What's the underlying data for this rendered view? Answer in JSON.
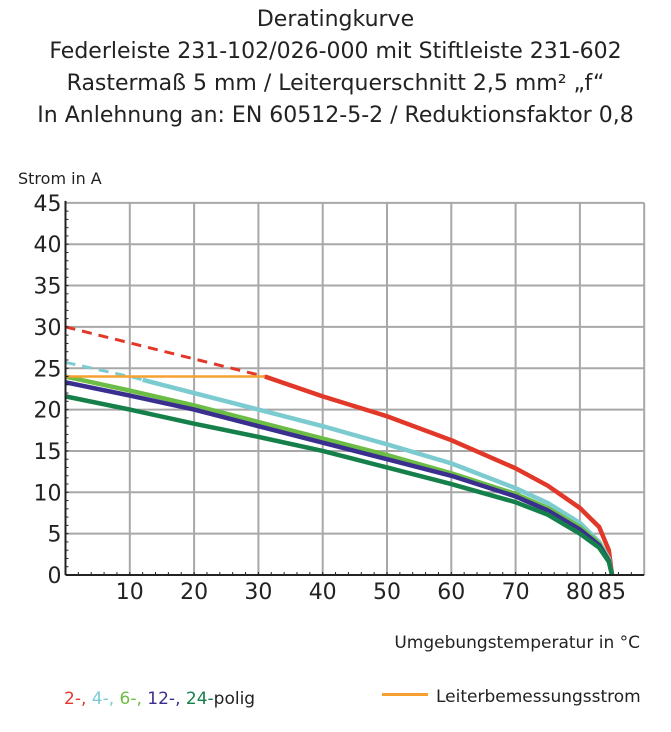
{
  "title_lines": [
    "Deratingkurve",
    "Federleiste 231-102/026-000 mit Stiftleiste 231-602",
    "Rastermaß 5 mm / Leiterquerschnitt 2,5 mm² „f“",
    "In Anlehnung an: EN 60512-5-2 / Reduktionsfaktor 0,8"
  ],
  "chart_data": {
    "type": "line",
    "ylabel": "Strom in A",
    "xlabel": "Umgebungstemperatur in °C",
    "xlim": [
      0,
      85
    ],
    "ylim": [
      0,
      45
    ],
    "x_ticks": [
      10,
      20,
      30,
      40,
      50,
      60,
      70,
      80,
      85
    ],
    "y_ticks": [
      0,
      5,
      10,
      15,
      20,
      25,
      30,
      35,
      40,
      45
    ],
    "grid": true,
    "series": [
      {
        "name": "2-",
        "color": "#e2382a",
        "dashed_until": 31,
        "points": [
          [
            0,
            30
          ],
          [
            31,
            24
          ],
          [
            40,
            21.6
          ],
          [
            50,
            19.2
          ],
          [
            60,
            16.3
          ],
          [
            70,
            12.9
          ],
          [
            75,
            10.8
          ],
          [
            80,
            8.1
          ],
          [
            83,
            5.8
          ],
          [
            84.5,
            3
          ],
          [
            85,
            0
          ]
        ]
      },
      {
        "name": "4-",
        "color": "#7ccbd1",
        "dashed_until": 12,
        "points": [
          [
            0,
            25.7
          ],
          [
            10,
            24
          ],
          [
            20,
            22
          ],
          [
            30,
            20
          ],
          [
            40,
            18
          ],
          [
            50,
            15.8
          ],
          [
            60,
            13.5
          ],
          [
            70,
            10.5
          ],
          [
            75,
            8.7
          ],
          [
            80,
            6.3
          ],
          [
            83,
            4
          ],
          [
            84.5,
            2
          ],
          [
            85,
            0
          ]
        ]
      },
      {
        "name": "6-",
        "color": "#6cbd45",
        "points": [
          [
            0,
            24
          ],
          [
            10,
            22.3
          ],
          [
            20,
            20.5
          ],
          [
            30,
            18.5
          ],
          [
            40,
            16.5
          ],
          [
            50,
            14.5
          ],
          [
            60,
            12.3
          ],
          [
            70,
            9.8
          ],
          [
            75,
            8.1
          ],
          [
            80,
            5.8
          ],
          [
            83,
            3.8
          ],
          [
            84.5,
            1.8
          ],
          [
            85,
            0
          ]
        ]
      },
      {
        "name": "12-",
        "color": "#3a2f8f",
        "points": [
          [
            0,
            23.3
          ],
          [
            10,
            21.7
          ],
          [
            20,
            20
          ],
          [
            30,
            18
          ],
          [
            40,
            16
          ],
          [
            50,
            14
          ],
          [
            60,
            12
          ],
          [
            70,
            9.5
          ],
          [
            75,
            7.8
          ],
          [
            80,
            5.5
          ],
          [
            83,
            3.6
          ],
          [
            84.5,
            1.7
          ],
          [
            85,
            0
          ]
        ]
      },
      {
        "name": "24-",
        "color": "#16804a",
        "points": [
          [
            0,
            21.6
          ],
          [
            10,
            20
          ],
          [
            20,
            18.3
          ],
          [
            30,
            16.7
          ],
          [
            40,
            15
          ],
          [
            50,
            13
          ],
          [
            60,
            11
          ],
          [
            70,
            8.8
          ],
          [
            75,
            7.3
          ],
          [
            80,
            5
          ],
          [
            83,
            3.3
          ],
          [
            84.5,
            1.6
          ],
          [
            85,
            0
          ]
        ]
      },
      {
        "name": "Leiterbemessungsstrom",
        "color": "#f5a030",
        "points": [
          [
            0,
            24
          ],
          [
            31,
            24
          ]
        ]
      }
    ]
  },
  "legend": {
    "polig_suffix": "polig",
    "rated_label": "Leiterbemessungsstrom"
  }
}
